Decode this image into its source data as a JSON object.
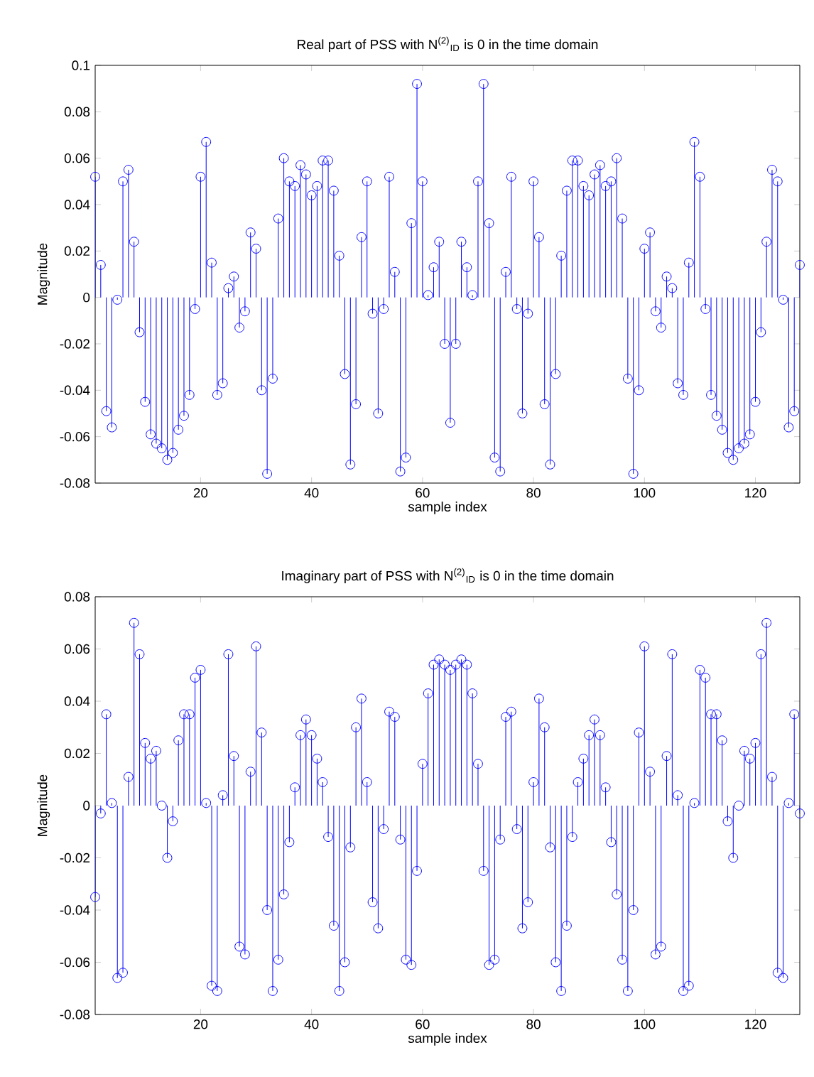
{
  "chart_data": [
    {
      "type": "lollipop",
      "title": "Real part of PSS with N$^{(2)}$$_{ID}$ is 0 in the time domain",
      "xlabel": "sample index",
      "ylabel": "Magnitude",
      "color": "#0000ff",
      "marker": "circle",
      "x": [
        1,
        2,
        3,
        4,
        5,
        6,
        7,
        8,
        9,
        10,
        11,
        12,
        13,
        14,
        15,
        16,
        17,
        18,
        19,
        20,
        21,
        22,
        23,
        24,
        25,
        26,
        27,
        28,
        29,
        30,
        31,
        32,
        33,
        34,
        35,
        36,
        37,
        38,
        39,
        40,
        41,
        42,
        43,
        44,
        45,
        46,
        47,
        48,
        49,
        50,
        51,
        52,
        53,
        54,
        55,
        56,
        57,
        58,
        59,
        60,
        61,
        62,
        63,
        64,
        65,
        66,
        67,
        68,
        69,
        70,
        71,
        72,
        73,
        74,
        75,
        76,
        77,
        78,
        79,
        80,
        81,
        82,
        83,
        84,
        85,
        86,
        87,
        88,
        89,
        90,
        91,
        92,
        93,
        94,
        95,
        96,
        97,
        98,
        99,
        100,
        101,
        102,
        103,
        104,
        105,
        106,
        107,
        108,
        109,
        110,
        111,
        112,
        113,
        114,
        115,
        116,
        117,
        118,
        119,
        120,
        121,
        122,
        123,
        124,
        125,
        126,
        127,
        128
      ],
      "values": [
        0.052,
        0.014,
        -0.049,
        -0.056,
        -0.001,
        0.05,
        0.055,
        0.024,
        -0.015,
        -0.045,
        -0.059,
        -0.063,
        -0.065,
        -0.07,
        -0.067,
        -0.057,
        -0.051,
        -0.042,
        -0.005,
        0.052,
        0.067,
        0.015,
        -0.042,
        -0.037,
        0.004,
        0.009,
        -0.013,
        -0.006,
        0.028,
        0.021,
        -0.04,
        -0.076,
        -0.035,
        0.034,
        0.06,
        0.05,
        0.048,
        0.057,
        0.053,
        0.044,
        0.048,
        0.059,
        0.059,
        0.046,
        0.018,
        -0.033,
        -0.072,
        -0.046,
        0.026,
        0.05,
        -0.007,
        -0.05,
        -0.005,
        0.052,
        0.011,
        -0.075,
        -0.069,
        0.032,
        0.092,
        0.05,
        0.001,
        0.013,
        0.024,
        -0.02,
        -0.054,
        -0.02,
        0.024,
        0.013,
        0.001,
        0.05,
        0.092,
        0.032,
        -0.069,
        -0.075,
        0.011,
        0.052,
        -0.005,
        -0.05,
        -0.007,
        0.05,
        0.026,
        -0.046,
        -0.072,
        -0.033,
        0.018,
        0.046,
        0.059,
        0.059,
        0.048,
        0.044,
        0.053,
        0.057,
        0.048,
        0.05,
        0.06,
        0.034,
        -0.035,
        -0.076,
        -0.04,
        0.021,
        0.028,
        -0.006,
        -0.013,
        0.009,
        0.004,
        -0.037,
        -0.042,
        0.015,
        0.067,
        0.052,
        -0.005,
        -0.042,
        -0.051,
        -0.057,
        -0.067,
        -0.07,
        -0.065,
        -0.063,
        -0.059,
        -0.045,
        -0.015,
        0.024,
        0.055,
        0.05,
        -0.001,
        -0.056,
        -0.049,
        0.014
      ],
      "xlim": [
        1,
        128
      ],
      "xticks": [
        20,
        40,
        60,
        80,
        100,
        120
      ],
      "ylim": [
        -0.08,
        0.1
      ],
      "yticks": [
        -0.08,
        -0.06,
        -0.04,
        -0.02,
        0,
        0.02,
        0.04,
        0.06,
        0.08,
        0.1
      ]
    },
    {
      "type": "lollipop",
      "title": "Imaginary part of PSS with N$^{(2)}$$_{ID}$ is 0 in the time domain",
      "xlabel": "sample index",
      "ylabel": "Magnitude",
      "color": "#0000ff",
      "marker": "circle",
      "x": [
        1,
        2,
        3,
        4,
        5,
        6,
        7,
        8,
        9,
        10,
        11,
        12,
        13,
        14,
        15,
        16,
        17,
        18,
        19,
        20,
        21,
        22,
        23,
        24,
        25,
        26,
        27,
        28,
        29,
        30,
        31,
        32,
        33,
        34,
        35,
        36,
        37,
        38,
        39,
        40,
        41,
        42,
        43,
        44,
        45,
        46,
        47,
        48,
        49,
        50,
        51,
        52,
        53,
        54,
        55,
        56,
        57,
        58,
        59,
        60,
        61,
        62,
        63,
        64,
        65,
        66,
        67,
        68,
        69,
        70,
        71,
        72,
        73,
        74,
        75,
        76,
        77,
        78,
        79,
        80,
        81,
        82,
        83,
        84,
        85,
        86,
        87,
        88,
        89,
        90,
        91,
        92,
        93,
        94,
        95,
        96,
        97,
        98,
        99,
        100,
        101,
        102,
        103,
        104,
        105,
        106,
        107,
        108,
        109,
        110,
        111,
        112,
        113,
        114,
        115,
        116,
        117,
        118,
        119,
        120,
        121,
        122,
        123,
        124,
        125,
        126,
        127,
        128
      ],
      "values": [
        -0.035,
        -0.003,
        0.035,
        0.001,
        -0.066,
        -0.064,
        0.011,
        0.07,
        0.058,
        0.024,
        0.018,
        0.021,
        0.0,
        -0.02,
        -0.006,
        0.025,
        0.035,
        0.035,
        0.049,
        0.052,
        0.001,
        -0.069,
        -0.071,
        0.004,
        0.058,
        0.019,
        -0.054,
        -0.057,
        0.013,
        0.061,
        0.028,
        -0.04,
        -0.071,
        -0.059,
        -0.034,
        -0.014,
        0.007,
        0.027,
        0.033,
        0.027,
        0.018,
        0.009,
        -0.012,
        -0.046,
        -0.071,
        -0.06,
        -0.016,
        0.03,
        0.041,
        0.009,
        -0.037,
        -0.047,
        -0.009,
        0.036,
        0.034,
        -0.013,
        -0.059,
        -0.061,
        -0.025,
        0.016,
        0.043,
        0.054,
        0.056,
        0.054,
        0.052,
        0.054,
        0.056,
        0.054,
        0.043,
        0.016,
        -0.025,
        -0.061,
        -0.059,
        -0.013,
        0.034,
        0.036,
        -0.009,
        -0.047,
        -0.037,
        0.009,
        0.041,
        0.03,
        -0.016,
        -0.06,
        -0.071,
        -0.046,
        -0.012,
        0.009,
        0.018,
        0.027,
        0.033,
        0.027,
        0.007,
        -0.014,
        -0.034,
        -0.059,
        -0.071,
        -0.04,
        0.028,
        0.061,
        0.013,
        -0.057,
        -0.054,
        0.019,
        0.058,
        0.004,
        -0.071,
        -0.069,
        0.001,
        0.052,
        0.049,
        0.035,
        0.035,
        0.025,
        -0.006,
        -0.02,
        0.0,
        0.021,
        0.018,
        0.024,
        0.058,
        0.07,
        0.011,
        -0.064,
        -0.066,
        0.001,
        0.035,
        -0.003
      ],
      "xlim": [
        1,
        128
      ],
      "xticks": [
        20,
        40,
        60,
        80,
        100,
        120
      ],
      "ylim": [
        -0.08,
        0.08
      ],
      "yticks": [
        -0.08,
        -0.06,
        -0.04,
        -0.02,
        0,
        0.02,
        0.04,
        0.06,
        0.08
      ]
    }
  ]
}
